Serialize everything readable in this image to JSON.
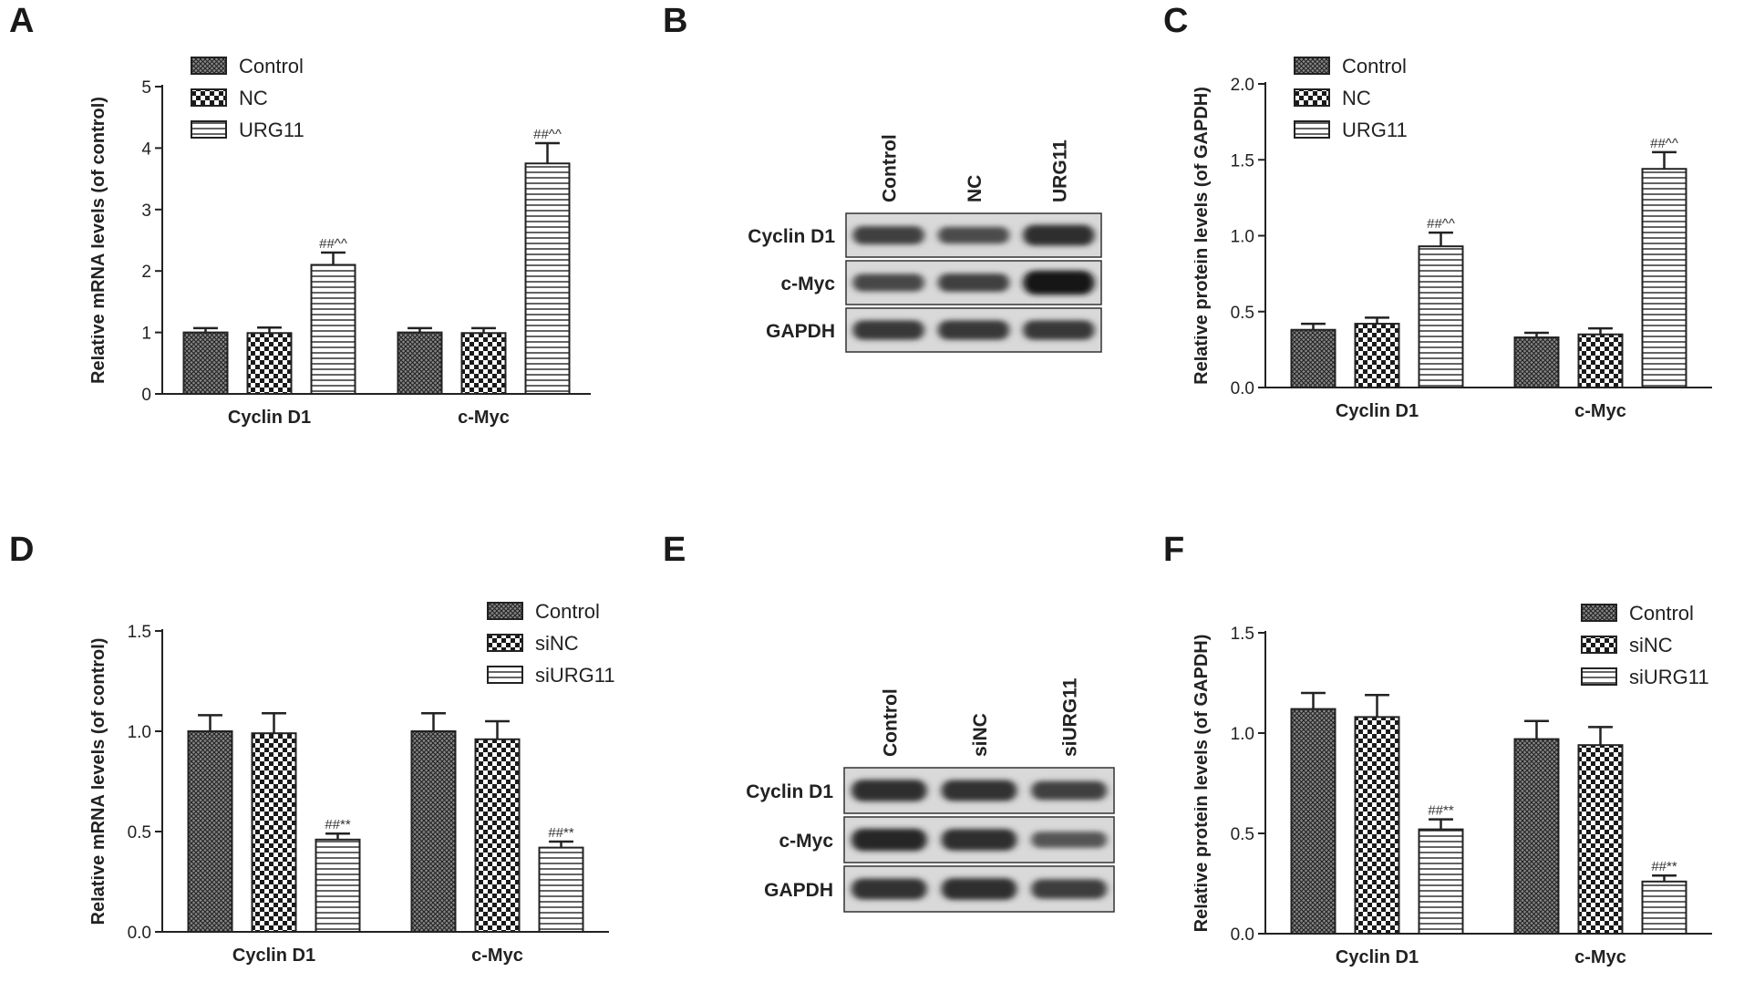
{
  "chart_data": [
    {
      "panel": "A",
      "type": "bar",
      "ylabel": "Relative mRNA levels (of control)",
      "categories": [
        "Cyclin D1",
        "c-Myc"
      ],
      "ylim": [
        0,
        5
      ],
      "yticks": [
        "0",
        "1",
        "2",
        "3",
        "4",
        "5"
      ],
      "legend_position": "top-left",
      "series": [
        {
          "name": "Control",
          "pattern": "dense",
          "values": [
            1.0,
            1.0
          ],
          "errors": [
            0.07,
            0.07
          ],
          "annotations": [
            "",
            ""
          ]
        },
        {
          "name": "NC",
          "pattern": "check",
          "values": [
            0.99,
            0.99
          ],
          "errors": [
            0.09,
            0.08
          ],
          "annotations": [
            "",
            ""
          ]
        },
        {
          "name": "URG11",
          "pattern": "hstripe",
          "values": [
            2.1,
            3.75
          ],
          "errors": [
            0.2,
            0.33
          ],
          "annotations": [
            "##^^",
            "##^^"
          ]
        }
      ]
    },
    {
      "panel": "C",
      "type": "bar",
      "ylabel": "Relative protein levels (of GAPDH)",
      "categories": [
        "Cyclin D1",
        "c-Myc"
      ],
      "ylim": [
        0,
        2.0
      ],
      "yticks": [
        "0.0",
        "0.5",
        "1.0",
        "1.5",
        "2.0"
      ],
      "legend_position": "top-left",
      "series": [
        {
          "name": "Control",
          "pattern": "dense",
          "values": [
            0.38,
            0.33
          ],
          "errors": [
            0.04,
            0.03
          ],
          "annotations": [
            "",
            ""
          ]
        },
        {
          "name": "NC",
          "pattern": "check",
          "values": [
            0.42,
            0.35
          ],
          "errors": [
            0.04,
            0.04
          ],
          "annotations": [
            "",
            ""
          ]
        },
        {
          "name": "URG11",
          "pattern": "hstripe",
          "values": [
            0.93,
            1.44
          ],
          "errors": [
            0.09,
            0.11
          ],
          "annotations": [
            "##^^",
            "##^^"
          ]
        }
      ]
    },
    {
      "panel": "D",
      "type": "bar",
      "ylabel": "Relative mRNA levels (of control)",
      "categories": [
        "Cyclin D1",
        "c-Myc"
      ],
      "ylim": [
        0,
        1.5
      ],
      "yticks": [
        "0.0",
        "0.5",
        "1.0",
        "1.5"
      ],
      "legend_position": "top-right",
      "series": [
        {
          "name": "Control",
          "pattern": "dense",
          "values": [
            1.0,
            1.0
          ],
          "errors": [
            0.08,
            0.09
          ],
          "annotations": [
            "",
            ""
          ]
        },
        {
          "name": "siNC",
          "pattern": "check",
          "values": [
            0.99,
            0.96
          ],
          "errors": [
            0.1,
            0.09
          ],
          "annotations": [
            "",
            ""
          ]
        },
        {
          "name": "siURG11",
          "pattern": "hstripe",
          "values": [
            0.46,
            0.42
          ],
          "errors": [
            0.03,
            0.03
          ],
          "annotations": [
            "##**",
            "##**"
          ]
        }
      ]
    },
    {
      "panel": "F",
      "type": "bar",
      "ylabel": "Relative protein levels (of GAPDH)",
      "categories": [
        "Cyclin D1",
        "c-Myc"
      ],
      "ylim": [
        0,
        1.5
      ],
      "yticks": [
        "0.0",
        "0.5",
        "1.0",
        "1.5"
      ],
      "legend_position": "top-right",
      "series": [
        {
          "name": "Control",
          "pattern": "dense",
          "values": [
            1.12,
            0.97
          ],
          "errors": [
            0.08,
            0.09
          ],
          "annotations": [
            "",
            ""
          ]
        },
        {
          "name": "siNC",
          "pattern": "check",
          "values": [
            1.08,
            0.94
          ],
          "errors": [
            0.11,
            0.09
          ],
          "annotations": [
            "",
            ""
          ]
        },
        {
          "name": "siURG11",
          "pattern": "hstripe",
          "values": [
            0.52,
            0.26
          ],
          "errors": [
            0.05,
            0.03
          ],
          "annotations": [
            "##**",
            "##**"
          ]
        }
      ]
    }
  ],
  "blots": [
    {
      "panel": "B",
      "lanes": [
        "Control",
        "NC",
        "URG11"
      ],
      "rows": [
        {
          "label": "Cyclin D1",
          "intensities": [
            0.55,
            0.45,
            0.75
          ]
        },
        {
          "label": "c-Myc",
          "intensities": [
            0.5,
            0.55,
            1.0
          ]
        },
        {
          "label": "GAPDH",
          "intensities": [
            0.65,
            0.65,
            0.65
          ]
        }
      ]
    },
    {
      "panel": "E",
      "lanes": [
        "Control",
        "siNC",
        "siURG11"
      ],
      "rows": [
        {
          "label": "Cyclin D1",
          "intensities": [
            0.75,
            0.7,
            0.55
          ]
        },
        {
          "label": "c-Myc",
          "intensities": [
            0.8,
            0.75,
            0.35
          ]
        },
        {
          "label": "GAPDH",
          "intensities": [
            0.7,
            0.75,
            0.6
          ]
        }
      ]
    }
  ]
}
